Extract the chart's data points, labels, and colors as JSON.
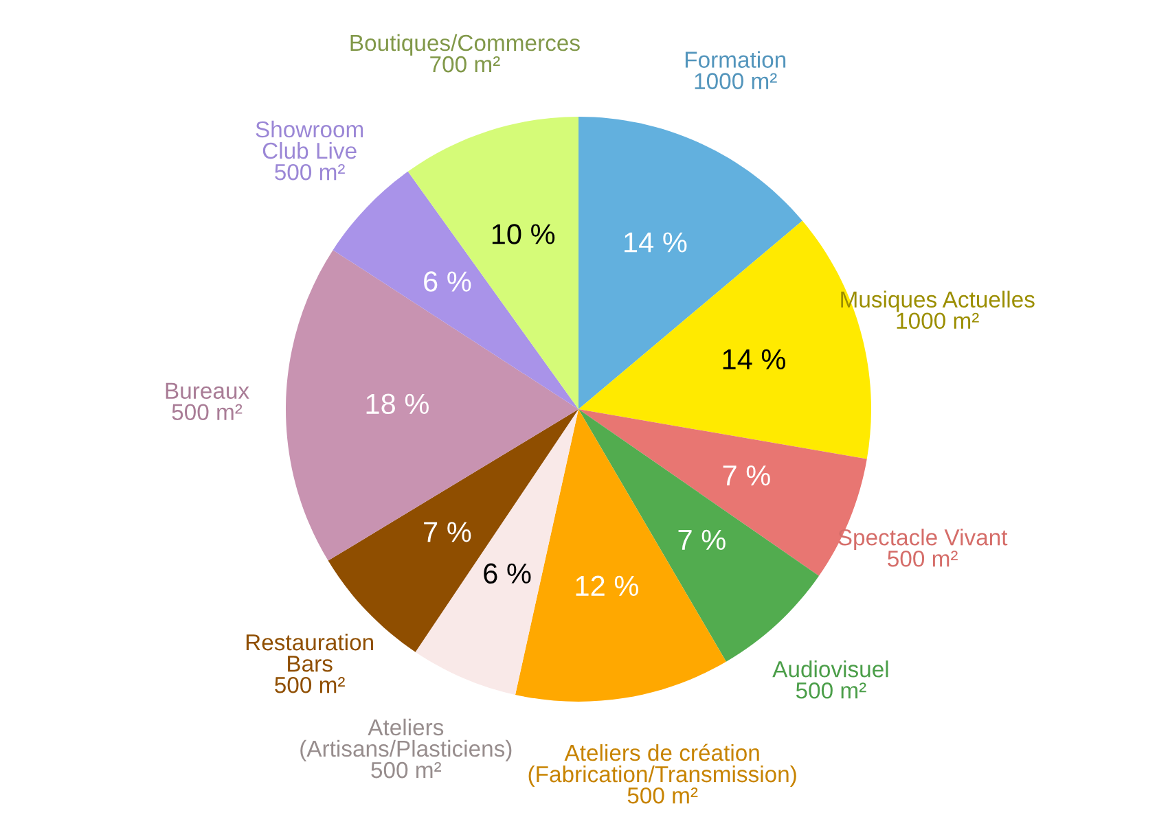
{
  "chart_data": {
    "type": "pie",
    "categories": [
      "Formation\n1000 m²",
      "Musiques Actuelles\n1000 m²",
      "Spectacle Vivant\n500 m²",
      "Audiovisuel\n500 m²",
      "Ateliers de création\n(Fabrication/Transmission)\n500 m²",
      "Ateliers\n(Artisans/Plasticiens)\n500 m²",
      "Restauration\nBars\n500 m²",
      "Bureaux\n500 m²",
      "Showroom\nClub Live\n500 m²",
      "Boutiques/Commerces\n700 m²"
    ],
    "values": [
      14,
      14,
      7,
      7,
      12,
      6,
      7,
      18,
      6,
      10
    ],
    "value_labels": [
      "14 %",
      "14 %",
      "7 %",
      "7 %",
      "12 %",
      "6 %",
      "7 %",
      "18 %",
      "6 %",
      "10 %"
    ],
    "colors": [
      "#62b0de",
      "#ffea00",
      "#e87672",
      "#52ac4f",
      "#ffa800",
      "#f9e9e8",
      "#8f4e00",
      "#c893b1",
      "#a993e9",
      "#d5fb78"
    ],
    "legend": false
  }
}
